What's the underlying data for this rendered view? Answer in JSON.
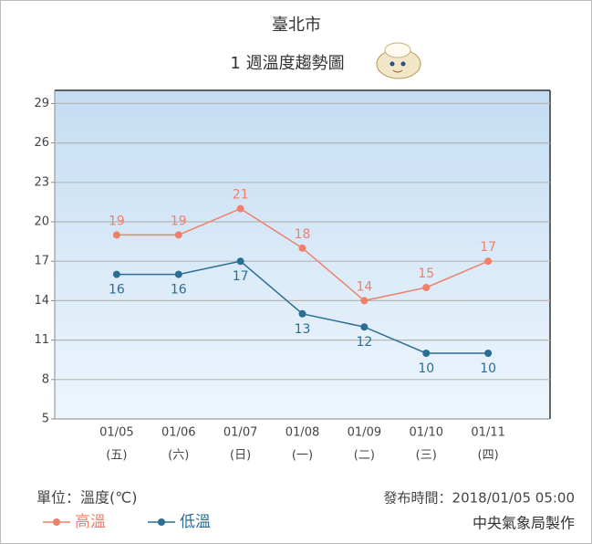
{
  "chart_data": {
    "type": "line",
    "title": "臺北市",
    "subtitle": "1 週溫度趨勢圖",
    "categories": [
      "01/05",
      "01/06",
      "01/07",
      "01/08",
      "01/09",
      "01/10",
      "01/11"
    ],
    "category_sublabels": [
      "(五)",
      "(六)",
      "(日)",
      "(一)",
      "(二)",
      "(三)",
      "(四)"
    ],
    "series": [
      {
        "name": "高溫",
        "color": "#f0806a",
        "values": [
          19,
          19,
          21,
          18,
          14,
          15,
          17
        ],
        "label_position": "above"
      },
      {
        "name": "低溫",
        "color": "#2c6d94",
        "values": [
          16,
          16,
          17,
          13,
          12,
          10,
          10
        ],
        "label_position": "below"
      }
    ],
    "ylim": [
      5,
      30
    ],
    "yticks": [
      5,
      8,
      11,
      14,
      17,
      20,
      23,
      26,
      29
    ],
    "grid": true,
    "legend": "bottom-left",
    "unit_label": "單位：溫度(℃)",
    "issued": "發布時間：2018/01/05 05:00",
    "source": "中央氣象局製作"
  }
}
